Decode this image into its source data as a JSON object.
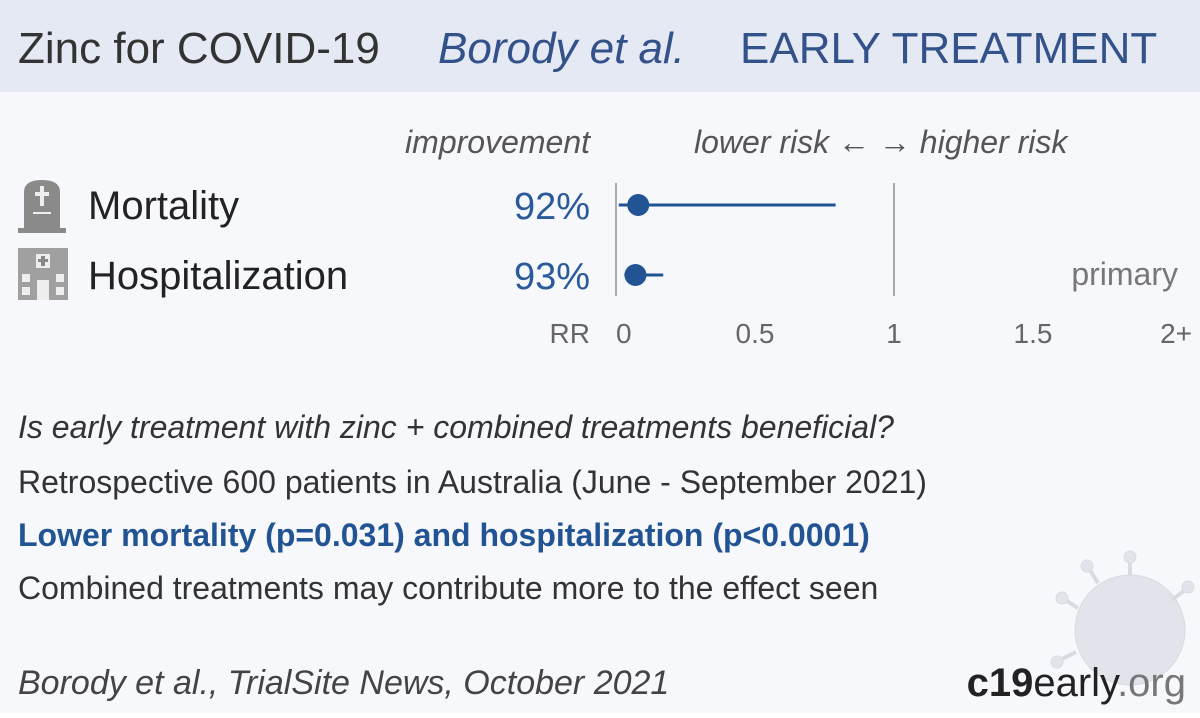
{
  "chart_data": {
    "type": "forest",
    "title": "Zinc for COVID-19",
    "study": "Borody et al.",
    "stage": "EARLY TREATMENT",
    "improvement_header": "improvement",
    "direction_header": "lower risk ← → higher risk",
    "categories": [
      "Mortality",
      "Hospitalization"
    ],
    "improvement": [
      92,
      93
    ],
    "improvement_labels": [
      "92%",
      "93%"
    ],
    "values": [
      0.08,
      0.07
    ],
    "ci_low": [
      0.01,
      0.03
    ],
    "ci_high": [
      0.79,
      0.17
    ],
    "color": "#225494",
    "row_note": [
      null,
      "primary"
    ],
    "x_label": "RR",
    "xlim": [
      0,
      2
    ],
    "xticks": [
      0,
      0.5,
      1,
      1.5,
      {
        "value": 2,
        "label": "2+"
      }
    ],
    "reference_lines": [
      0,
      1
    ],
    "question": "Is early treatment with zinc + combined treatments beneficial?",
    "design": "Retrospective 600 patients in Australia (June - September 2021)",
    "finding": "Lower mortality (p=0.031) and hospitalization (p<0.0001)",
    "note": "Combined treatments may contribute more to the effect seen",
    "citation": "Borody et al., TrialSite News, October 2021",
    "brand": [
      "c19",
      "early",
      ".org"
    ]
  }
}
